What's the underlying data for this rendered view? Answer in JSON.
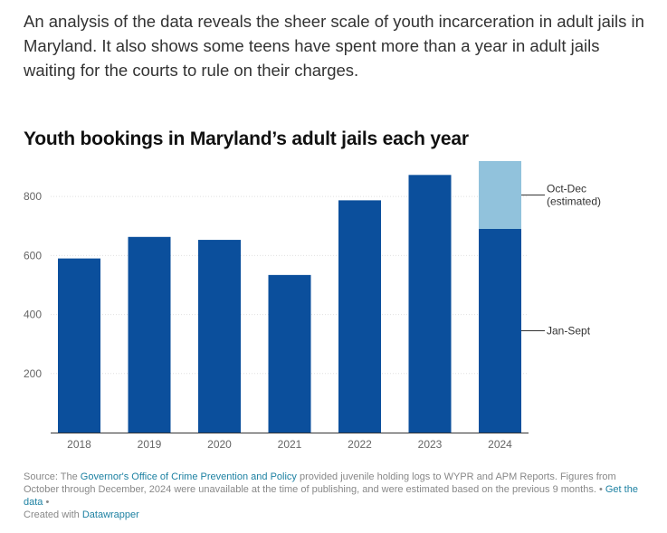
{
  "intro_text": "An analysis of the data reveals the sheer scale of youth incarceration in adult jails in Maryland. It also shows some teens have spent more than a year in adult jails waiting for the courts to rule on their charges.",
  "colors": {
    "jan_sept": "#0b4f9c",
    "oct_dec": "#91c2dc"
  },
  "chart_data": {
    "type": "bar",
    "stacked": true,
    "title": "Youth bookings in Maryland’s adult jails each year",
    "xlabel": "",
    "ylabel": "",
    "ylim": [
      0,
      920
    ],
    "yticks": [
      200,
      400,
      600,
      800
    ],
    "grid": true,
    "categories": [
      "2018",
      "2019",
      "2020",
      "2021",
      "2022",
      "2023",
      "2024"
    ],
    "series": [
      {
        "name": "Jan-Sept",
        "values": [
          590,
          663,
          653,
          534,
          787,
          873,
          690
        ]
      },
      {
        "name": "Oct-Dec (estimated)",
        "values": [
          0,
          0,
          0,
          0,
          0,
          0,
          230
        ]
      }
    ],
    "annotations": [
      {
        "series": 1,
        "lines": [
          "Oct-Dec",
          "(estimated)"
        ]
      },
      {
        "series": 0,
        "lines": [
          "Jan-Sept"
        ]
      }
    ]
  },
  "source": {
    "prefix": "Source: The",
    "link_text": "Governor's Office of Crime Prevention and Policy",
    "body": " provided juvenile holding logs to WYPR and APM Reports. Figures from October through December, 2024 were unavailable at the time of publishing, and were estimated based on the previous 9 months. ",
    "sep1": "•",
    "get_data": "Get the data",
    "sep2": "•",
    "created_with": "Created with",
    "tool": "Datawrapper"
  }
}
